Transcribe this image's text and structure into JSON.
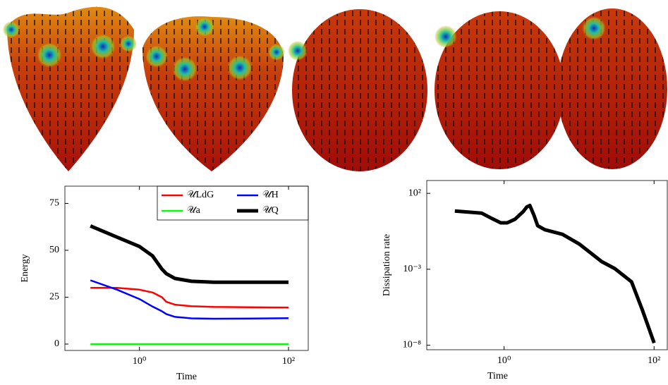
{
  "chart_data": [
    {
      "type": "line",
      "xlabel": "Time",
      "ylabel": "Energy",
      "xscale": "log",
      "xlim": [
        0.1,
        184
      ],
      "ylim": [
        -3.4,
        84.2
      ],
      "xticks": [
        {
          "value": 1,
          "label": "10⁰"
        },
        {
          "value": 100,
          "label": "10²"
        }
      ],
      "yticks": [
        0,
        25,
        50,
        75
      ],
      "legend": "upper right",
      "x": [
        0.22,
        0.5,
        1,
        1.5,
        2,
        2.3,
        3,
        5,
        10,
        30,
        100
      ],
      "series": [
        {
          "name": "𝒰LdG",
          "color": "#ff0000",
          "values": [
            30,
            30,
            29,
            27.5,
            25,
            22.5,
            21,
            20.2,
            19.8,
            19.6,
            19.5
          ]
        },
        {
          "name": "𝒰H",
          "color": "#0000ff",
          "values": [
            34,
            29,
            24,
            20,
            17.5,
            16,
            14.5,
            13.7,
            13.5,
            13.6,
            13.8
          ]
        },
        {
          "name": "𝒰a",
          "color": "#00ff00",
          "values": [
            0,
            0,
            0,
            0,
            0,
            0,
            0,
            0,
            0,
            0,
            0
          ]
        },
        {
          "name": "𝒰Q",
          "color": "#000000",
          "values": [
            63,
            57,
            52,
            47,
            40,
            37.5,
            35,
            33.5,
            33,
            33,
            33
          ]
        }
      ]
    },
    {
      "type": "line",
      "xlabel": "Time",
      "ylabel": "Dissipation rate",
      "xscale": "log",
      "yscale": "log",
      "xlim": [
        0.093,
        150
      ],
      "ylim": [
        5e-09,
        700
      ],
      "xticks": [
        {
          "value": 1,
          "label": "10⁰"
        },
        {
          "value": 100,
          "label": "10²"
        }
      ],
      "yticks": [
        {
          "value": 100,
          "label": "10²"
        },
        {
          "value": 0.001,
          "label": "10⁻³"
        },
        {
          "value": 1e-08,
          "label": "10⁻⁸"
        }
      ],
      "x": [
        0.22,
        0.5,
        0.7,
        0.9,
        1.1,
        1.4,
        1.8,
        2.0,
        2.2,
        2.5,
        2.8,
        3.5,
        6,
        10,
        20,
        30,
        50,
        70,
        100
      ],
      "series": [
        {
          "color": "#000000",
          "values": [
            6.9,
            5.0,
            2.1,
            1.15,
            1.15,
            2.0,
            6.3,
            12.6,
            16,
            3.6,
            0.74,
            0.4,
            0.2,
            0.047,
            0.0032,
            0.0011,
            0.00015,
            2e-06,
            1.4e-08
          ]
        }
      ]
    }
  ]
}
